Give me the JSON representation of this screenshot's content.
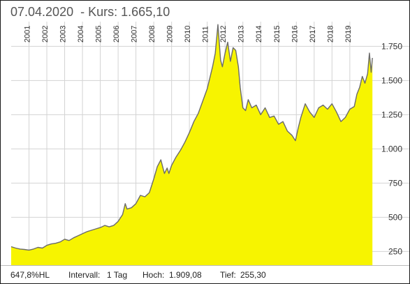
{
  "header": {
    "date": "07.04.2020",
    "separator": "-",
    "price_label": "Kurs:",
    "price_value": "1.665,10"
  },
  "footer": {
    "performance": "647,8%HL",
    "interval_label": "Intervall:",
    "interval_value": "1 Tag",
    "high_label": "Hoch:",
    "high_value": "1.909,08",
    "low_label": "Tief:",
    "low_value": "255,30"
  },
  "colors": {
    "area_fill": "#f7f400",
    "line": "#6b6b6b",
    "grid": "#d3d3d3",
    "frame": "#1a1a1a"
  },
  "chart_data": {
    "type": "area",
    "x_axis_position": "top",
    "y_axis_position": "right",
    "grid": true,
    "ylim": [
      150,
      1920
    ],
    "year_labels": [
      "2001",
      "2002",
      "2003",
      "2004",
      "2005",
      "2006",
      "2007",
      "2008",
      "2009",
      "2010",
      "2011",
      "2012",
      "2013",
      "2014",
      "2015",
      "2016",
      "2017",
      "2018",
      "2019"
    ],
    "y_ticks": [
      250,
      500,
      750,
      1000,
      1250,
      1500,
      1750
    ],
    "y_tick_labels": [
      "250",
      "500",
      "750",
      "1.000",
      "1.250",
      "1.500",
      "1.750"
    ],
    "x": [
      2000.0,
      2000.25,
      2000.5,
      2000.75,
      2001.0,
      2001.25,
      2001.5,
      2001.75,
      2002.0,
      2002.25,
      2002.5,
      2002.75,
      2003.0,
      2003.25,
      2003.5,
      2003.75,
      2004.0,
      2004.25,
      2004.5,
      2004.75,
      2005.0,
      2005.25,
      2005.5,
      2005.75,
      2006.0,
      2006.25,
      2006.4,
      2006.5,
      2006.75,
      2007.0,
      2007.25,
      2007.5,
      2007.75,
      2008.0,
      2008.2,
      2008.4,
      2008.6,
      2008.75,
      2008.85,
      2009.0,
      2009.25,
      2009.5,
      2009.75,
      2010.0,
      2010.25,
      2010.5,
      2010.75,
      2011.0,
      2011.15,
      2011.3,
      2011.45,
      2011.6,
      2011.75,
      2011.85,
      2012.0,
      2012.15,
      2012.3,
      2012.45,
      2012.6,
      2012.75,
      2012.85,
      2013.0,
      2013.15,
      2013.3,
      2013.5,
      2013.75,
      2014.0,
      2014.25,
      2014.5,
      2014.75,
      2015.0,
      2015.25,
      2015.5,
      2015.75,
      2015.95,
      2016.1,
      2016.25,
      2016.5,
      2016.75,
      2017.0,
      2017.25,
      2017.5,
      2017.75,
      2018.0,
      2018.25,
      2018.5,
      2018.75,
      2019.0,
      2019.25,
      2019.4,
      2019.55,
      2019.7,
      2019.85,
      2020.0,
      2020.1,
      2020.2,
      2020.27
    ],
    "y": [
      285,
      275,
      268,
      265,
      260,
      268,
      280,
      275,
      295,
      305,
      310,
      320,
      340,
      330,
      350,
      365,
      380,
      395,
      405,
      415,
      425,
      440,
      430,
      440,
      470,
      520,
      600,
      560,
      570,
      600,
      660,
      650,
      680,
      780,
      870,
      920,
      820,
      860,
      820,
      880,
      940,
      990,
      1050,
      1120,
      1200,
      1260,
      1350,
      1440,
      1520,
      1600,
      1700,
      1909,
      1650,
      1600,
      1700,
      1780,
      1640,
      1740,
      1720,
      1600,
      1450,
      1300,
      1280,
      1360,
      1300,
      1320,
      1250,
      1300,
      1230,
      1240,
      1180,
      1200,
      1130,
      1100,
      1060,
      1150,
      1230,
      1330,
      1270,
      1230,
      1300,
      1320,
      1290,
      1330,
      1270,
      1200,
      1230,
      1290,
      1310,
      1400,
      1450,
      1530,
      1480,
      1550,
      1700,
      1560,
      1665
    ]
  }
}
